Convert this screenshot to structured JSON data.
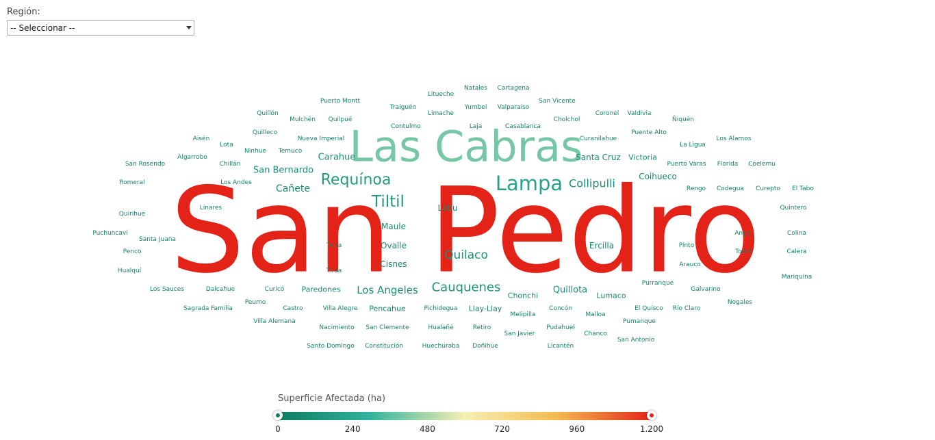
{
  "filter": {
    "label": "Región:",
    "selected": "-- Seleccionar --"
  },
  "legend": {
    "title": "Superficie Afectada (ha)",
    "ticks": [
      "0",
      "240",
      "480",
      "720",
      "960",
      "1.200"
    ],
    "min": 0,
    "max": 1200,
    "colors": [
      "#0e7c61",
      "#37b39f",
      "#f4f0b2",
      "#f3b94f",
      "#e32218"
    ]
  },
  "chart_data": {
    "type": "wordcloud",
    "value_label": "Superficie Afectada (ha)",
    "range": [
      0,
      1200
    ],
    "words": [
      {
        "text": "San Pedro",
        "value": 1200
      },
      {
        "text": "Las Cabras",
        "value": 400
      },
      {
        "text": "Lampa",
        "value": 200
      },
      {
        "text": "Requínoa",
        "value": 160
      },
      {
        "text": "Tiltil",
        "value": 150
      },
      {
        "text": "Collipulli",
        "value": 110
      },
      {
        "text": "Cauquenes",
        "value": 120
      },
      {
        "text": "Quilaco",
        "value": 110
      },
      {
        "text": "Los Angeles",
        "value": 105
      },
      {
        "text": "Cañete",
        "value": 100
      },
      {
        "text": "Carahue",
        "value": 90
      },
      {
        "text": "San Bernardo",
        "value": 90
      },
      {
        "text": "Quillota",
        "value": 85
      },
      {
        "text": "Lebu",
        "value": 70
      },
      {
        "text": "Maule",
        "value": 70
      },
      {
        "text": "Ovalle",
        "value": 70
      },
      {
        "text": "Cisnes",
        "value": 70
      },
      {
        "text": "Ercilla",
        "value": 70
      },
      {
        "text": "Coihueco",
        "value": 70
      },
      {
        "text": "Santa Cruz",
        "value": 70
      },
      {
        "text": "Victoria",
        "value": 60
      },
      {
        "text": "Lumaco",
        "value": 60
      },
      {
        "text": "Chonchi",
        "value": 60
      },
      {
        "text": "Llay-Llay",
        "value": 60
      },
      {
        "text": "Pencahue",
        "value": 60
      },
      {
        "text": "Paredones",
        "value": 60
      },
      {
        "text": "Puerto Montt",
        "value": 40
      },
      {
        "text": "Litueche",
        "value": 40
      },
      {
        "text": "Natales",
        "value": 40
      },
      {
        "text": "Cartagena",
        "value": 40
      },
      {
        "text": "Traiguén",
        "value": 40
      },
      {
        "text": "Yumbel",
        "value": 40
      },
      {
        "text": "Valparaíso",
        "value": 40
      },
      {
        "text": "San Vicente",
        "value": 40
      },
      {
        "text": "Quillón",
        "value": 40
      },
      {
        "text": "Limache",
        "value": 40
      },
      {
        "text": "Coronel",
        "value": 40
      },
      {
        "text": "Valdivia",
        "value": 40
      },
      {
        "text": "Mulchén",
        "value": 40
      },
      {
        "text": "Quilpué",
        "value": 40
      },
      {
        "text": "Cholchol",
        "value": 40
      },
      {
        "text": "Ñiquén",
        "value": 40
      },
      {
        "text": "Contulmo",
        "value": 40
      },
      {
        "text": "Laja",
        "value": 40
      },
      {
        "text": "Casablanca",
        "value": 40
      },
      {
        "text": "Quilleco",
        "value": 40
      },
      {
        "text": "Puente Alto",
        "value": 40
      },
      {
        "text": "Aisén",
        "value": 40
      },
      {
        "text": "Nueva Imperial",
        "value": 40
      },
      {
        "text": "Curanilahue",
        "value": 40
      },
      {
        "text": "Los Alamos",
        "value": 40
      },
      {
        "text": "Lota",
        "value": 40
      },
      {
        "text": "La Ligua",
        "value": 40
      },
      {
        "text": "Ninhue",
        "value": 40
      },
      {
        "text": "Temuco",
        "value": 40
      },
      {
        "text": "Algarrobo",
        "value": 40
      },
      {
        "text": "San Rosendo",
        "value": 40
      },
      {
        "text": "Chillán",
        "value": 40
      },
      {
        "text": "Puerto Varas",
        "value": 40
      },
      {
        "text": "Florida",
        "value": 40
      },
      {
        "text": "Coelemu",
        "value": 40
      },
      {
        "text": "Romeral",
        "value": 40
      },
      {
        "text": "Los Andes",
        "value": 40
      },
      {
        "text": "Rengo",
        "value": 40
      },
      {
        "text": "Codegua",
        "value": 40
      },
      {
        "text": "Curepto",
        "value": 40
      },
      {
        "text": "El Tabo",
        "value": 40
      },
      {
        "text": "Linares",
        "value": 40
      },
      {
        "text": "Quintero",
        "value": 40
      },
      {
        "text": "Quirihue",
        "value": 40
      },
      {
        "text": "Puchuncaví",
        "value": 40
      },
      {
        "text": "Angol",
        "value": 40
      },
      {
        "text": "Colina",
        "value": 40
      },
      {
        "text": "Santa Juana",
        "value": 40
      },
      {
        "text": "Talca",
        "value": 40
      },
      {
        "text": "Pinto",
        "value": 40
      },
      {
        "text": "Penco",
        "value": 40
      },
      {
        "text": "Tomé",
        "value": 40
      },
      {
        "text": "Calera",
        "value": 40
      },
      {
        "text": "Arauco",
        "value": 40
      },
      {
        "text": "Hualquí",
        "value": 40
      },
      {
        "text": "Tirúa",
        "value": 40
      },
      {
        "text": "Mariquina",
        "value": 40
      },
      {
        "text": "Purranque",
        "value": 40
      },
      {
        "text": "Los Sauces",
        "value": 40
      },
      {
        "text": "Dalcahue",
        "value": 40
      },
      {
        "text": "Curicó",
        "value": 40
      },
      {
        "text": "Galvarino",
        "value": 40
      },
      {
        "text": "Peumo",
        "value": 40
      },
      {
        "text": "Nogales",
        "value": 40
      },
      {
        "text": "Sagrada Familia",
        "value": 40
      },
      {
        "text": "Castro",
        "value": 40
      },
      {
        "text": "Villa Alegre",
        "value": 40
      },
      {
        "text": "Pichidegua",
        "value": 40
      },
      {
        "text": "Concón",
        "value": 40
      },
      {
        "text": "El Quisco",
        "value": 40
      },
      {
        "text": "Río Claro",
        "value": 40
      },
      {
        "text": "Melipilla",
        "value": 40
      },
      {
        "text": "Malloa",
        "value": 40
      },
      {
        "text": "Villa Alemana",
        "value": 40
      },
      {
        "text": "Pumanque",
        "value": 40
      },
      {
        "text": "Nacimiento",
        "value": 40
      },
      {
        "text": "San Clemente",
        "value": 40
      },
      {
        "text": "Hualañé",
        "value": 40
      },
      {
        "text": "Retiro",
        "value": 40
      },
      {
        "text": "Pudahuel",
        "value": 40
      },
      {
        "text": "San Javier",
        "value": 40
      },
      {
        "text": "Chanco",
        "value": 40
      },
      {
        "text": "San Antonio",
        "value": 40
      },
      {
        "text": "Santo Domingo",
        "value": 40
      },
      {
        "text": "Constitución",
        "value": 40
      },
      {
        "text": "Huechuraba",
        "value": 40
      },
      {
        "text": "Doñihue",
        "value": 40
      },
      {
        "text": "Licantén",
        "value": 40
      }
    ]
  }
}
